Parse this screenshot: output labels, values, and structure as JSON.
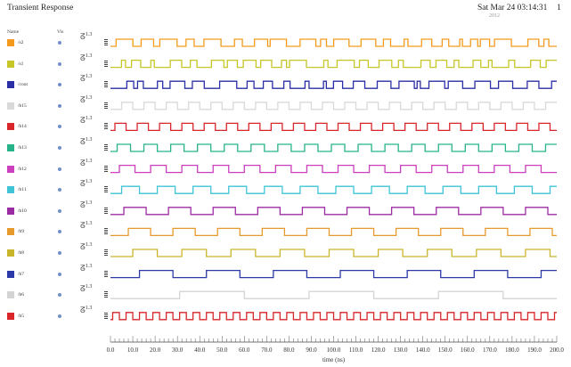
{
  "header": {
    "title": "Transient Response",
    "date": "Sat Mar 24 03:14:31",
    "date_sub": "2012",
    "page": "1"
  },
  "columns": {
    "name": "Name",
    "vis": "Vis"
  },
  "chart_data": {
    "type": "line",
    "xlabel": "time (ns)",
    "xlim": [
      0,
      200
    ],
    "xticks": [
      "0.0",
      "10.0",
      "20.0",
      "30.0",
      "40.0",
      "50.0",
      "60.0",
      "70.0",
      "80.0",
      "90.0",
      "100.0",
      "110.0",
      "120.0",
      "130.0",
      "140.0",
      "150.0",
      "160.0",
      "170.0",
      "180.0",
      "190.0",
      "200.0"
    ],
    "ytick": "1.3",
    "series": [
      {
        "name": "/s2",
        "color": "#f39a1c",
        "kind": "irregular",
        "seed": 3
      },
      {
        "name": "/s1",
        "color": "#c6c629",
        "kind": "irregular",
        "seed": 7
      },
      {
        "name": "/cout",
        "color": "#2b2fa6",
        "kind": "irregular",
        "seed": 11
      },
      {
        "name": "/b15",
        "color": "#d9d9d9",
        "kind": "clock",
        "period": 10
      },
      {
        "name": "/b14",
        "color": "#d8262b",
        "kind": "clock",
        "period": 10,
        "phase": 2
      },
      {
        "name": "/b13",
        "color": "#27b38a",
        "kind": "clock",
        "period": 12,
        "phase": 3
      },
      {
        "name": "/b12",
        "color": "#cc3fbf",
        "kind": "clock",
        "period": 14,
        "phase": 4
      },
      {
        "name": "/b11",
        "color": "#3fc4d6",
        "kind": "clock",
        "period": 16,
        "phase": 5
      },
      {
        "name": "/b10",
        "color": "#9c2ca3",
        "kind": "clock",
        "period": 20,
        "phase": 6
      },
      {
        "name": "/b9",
        "color": "#e79a2c",
        "kind": "clock",
        "period": 20,
        "phase": 8
      },
      {
        "name": "/b8",
        "color": "#c9b52a",
        "kind": "clock",
        "period": 22,
        "phase": 10
      },
      {
        "name": "/b7",
        "color": "#2b3aa8",
        "kind": "clock",
        "period": 30,
        "phase": 13
      },
      {
        "name": "/b6",
        "color": "#d4d4d4",
        "kind": "clock",
        "period": 58,
        "phase": 31
      },
      {
        "name": "/b5",
        "color": "#d8262b",
        "kind": "clock",
        "period": 6,
        "phase": 1
      }
    ]
  }
}
